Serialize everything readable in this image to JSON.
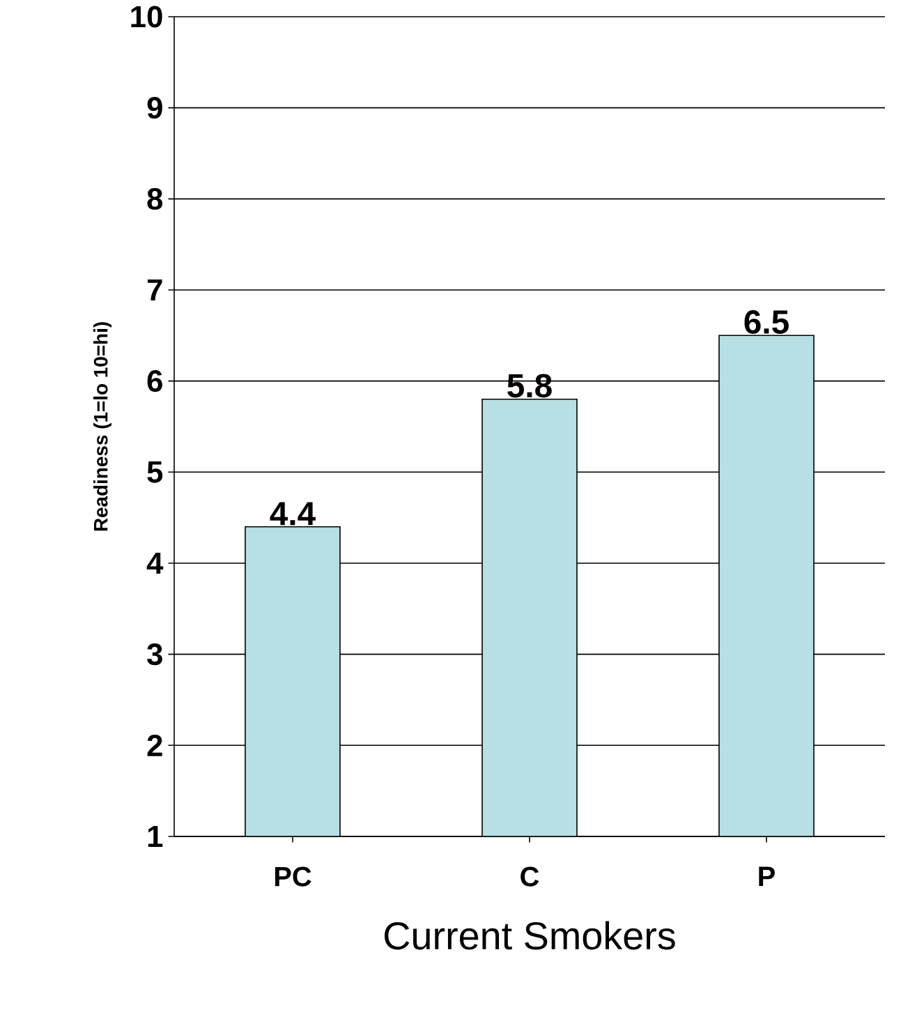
{
  "chart_data": {
    "type": "bar",
    "xlabel": "Current Smokers",
    "ylabel": "Readiness (1=lo 10=hi)",
    "categories": [
      "PC",
      "C",
      "P"
    ],
    "values": [
      4.4,
      5.8,
      6.5
    ],
    "color": "#b8dfe3",
    "ylim": [
      1,
      10
    ],
    "yticks": [
      1,
      2,
      3,
      4,
      5,
      6,
      7,
      8,
      9,
      10
    ],
    "grid": "y",
    "data_labels": true
  }
}
